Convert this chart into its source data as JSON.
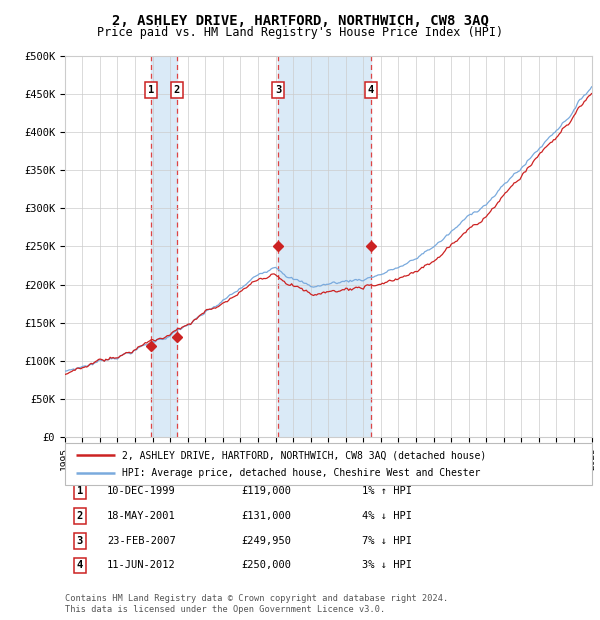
{
  "title": "2, ASHLEY DRIVE, HARTFORD, NORTHWICH, CW8 3AQ",
  "subtitle": "Price paid vs. HM Land Registry's House Price Index (HPI)",
  "title_fontsize": 10,
  "subtitle_fontsize": 8.5,
  "hpi_line_color": "#7aaadd",
  "price_line_color": "#cc2222",
  "marker_color": "#cc2222",
  "background_color": "#ffffff",
  "grid_color": "#cccccc",
  "shading_color": "#daeaf7",
  "ylim": [
    0,
    500000
  ],
  "yticks": [
    0,
    50000,
    100000,
    150000,
    200000,
    250000,
    300000,
    350000,
    400000,
    450000,
    500000
  ],
  "ytick_labels": [
    "£0",
    "£50K",
    "£100K",
    "£150K",
    "£200K",
    "£250K",
    "£300K",
    "£350K",
    "£400K",
    "£450K",
    "£500K"
  ],
  "x_start_year": 1995,
  "x_end_year": 2025,
  "sales": [
    {
      "num": 1,
      "date": "10-DEC-1999",
      "year": 1999.92,
      "price": 119000
    },
    {
      "num": 2,
      "date": "18-MAY-2001",
      "year": 2001.38,
      "price": 131000
    },
    {
      "num": 3,
      "date": "23-FEB-2007",
      "year": 2007.14,
      "price": 249950
    },
    {
      "num": 4,
      "date": "11-JUN-2012",
      "year": 2012.44,
      "price": 250000
    }
  ],
  "legend_line1": "2, ASHLEY DRIVE, HARTFORD, NORTHWICH, CW8 3AQ (detached house)",
  "legend_line2": "HPI: Average price, detached house, Cheshire West and Chester",
  "footer1": "Contains HM Land Registry data © Crown copyright and database right 2024.",
  "footer2": "This data is licensed under the Open Government Licence v3.0.",
  "table_rows": [
    {
      "num": 1,
      "date": "10-DEC-1999",
      "price": "£119,000",
      "hpi": "1% ↑ HPI"
    },
    {
      "num": 2,
      "date": "18-MAY-2001",
      "price": "£131,000",
      "hpi": "4% ↓ HPI"
    },
    {
      "num": 3,
      "date": "23-FEB-2007",
      "price": "£249,950",
      "hpi": "7% ↓ HPI"
    },
    {
      "num": 4,
      "date": "11-JUN-2012",
      "price": "£250,000",
      "hpi": "3% ↓ HPI"
    }
  ]
}
